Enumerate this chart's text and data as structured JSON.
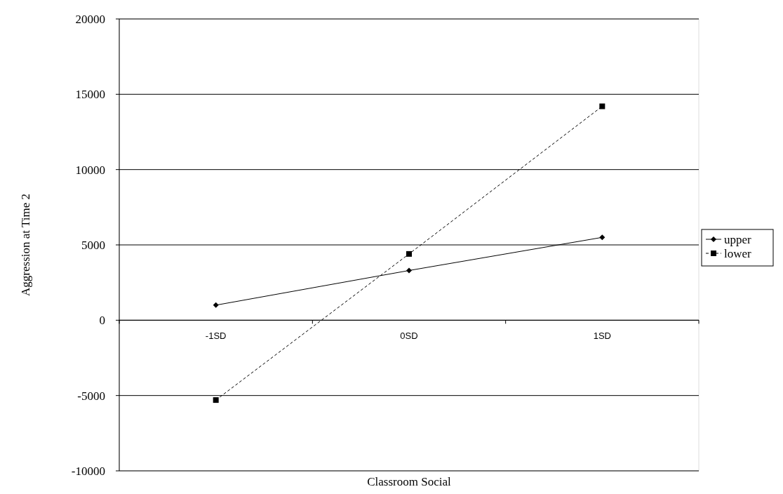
{
  "chart_data": {
    "type": "line",
    "xlabel": "Classroom Social",
    "ylabel": "Aggression at Time 2",
    "categories": [
      "-1SD",
      "0SD",
      "1SD"
    ],
    "series": [
      {
        "name": "upper",
        "color": "#000000",
        "values": [
          1000,
          3300,
          5500
        ],
        "marker": "diamond",
        "line_style": "solid"
      },
      {
        "name": "lower",
        "color": "#000000",
        "values": [
          -5300,
          4400,
          14200
        ],
        "marker": "square",
        "line_style": "dashed"
      }
    ],
    "ylim": [
      -10000,
      20000
    ],
    "yticks": [
      -10000,
      -5000,
      0,
      5000,
      10000,
      15000,
      20000
    ],
    "grid": "y",
    "legend": "right"
  }
}
